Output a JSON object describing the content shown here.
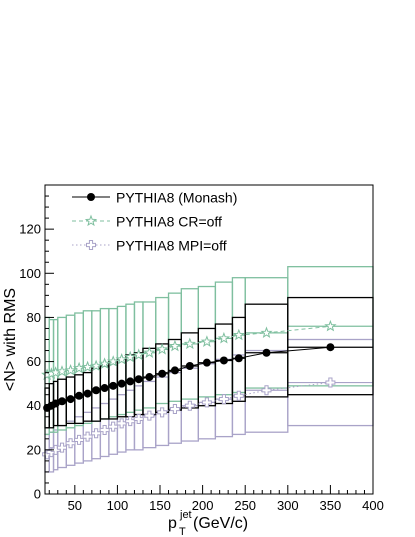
{
  "chart_data": {
    "type": "scatter",
    "title": "",
    "xlabel": "p",
    "xlabel_superscript": "jet",
    "xlabel_subscript": "T",
    "xlabel_unit": "(GeV/c)",
    "ylabel": "<N> with RMS",
    "xlim": [
      15,
      400
    ],
    "ylim": [
      0,
      140
    ],
    "xticks": [
      50,
      100,
      150,
      200,
      250,
      300,
      350,
      400
    ],
    "yticks": [
      0,
      20,
      40,
      60,
      80,
      100,
      120
    ],
    "legend_position": "top-left",
    "grid": false,
    "colors": {
      "monash": "#000000",
      "cr": "#7fbf9f",
      "mpi": "#a9a3c8"
    },
    "series": [
      {
        "name": "PYTHIA8 (Monash)",
        "marker": "filled-circle",
        "line": "solid",
        "x": [
          17.5,
          22.5,
          27.5,
          35,
          45,
          55,
          65,
          75,
          85,
          95,
          105,
          115,
          125,
          137.5,
          152.5,
          167.5,
          185,
          205,
          225,
          242.5,
          275,
          350
        ],
        "y": [
          39,
          40,
          41,
          42,
          43,
          44.5,
          45.5,
          47,
          48,
          49,
          50,
          51,
          52,
          53,
          54.5,
          56,
          58,
          59.5,
          60.5,
          61.5,
          64,
          66.5
        ],
        "x_edges": [
          15,
          20,
          25,
          30,
          40,
          50,
          60,
          70,
          80,
          90,
          100,
          110,
          120,
          130,
          145,
          160,
          175,
          195,
          215,
          235,
          250,
          300,
          400
        ],
        "rms_low": [
          30,
          30,
          31,
          31,
          32,
          32,
          33,
          33,
          34,
          34,
          35,
          35,
          36,
          36,
          37,
          38,
          39,
          40,
          41,
          42,
          44,
          45
        ],
        "rms_high": [
          48,
          50,
          51,
          52,
          53,
          54,
          55,
          57,
          58,
          60,
          61,
          63,
          64,
          66,
          68,
          70,
          73,
          75,
          77,
          80,
          86,
          89
        ]
      },
      {
        "name": "PYTHIA8 CR=off",
        "marker": "open-star",
        "line": "dashed",
        "x": [
          17.5,
          22.5,
          27.5,
          35,
          45,
          55,
          65,
          75,
          85,
          95,
          105,
          115,
          125,
          137.5,
          152.5,
          167.5,
          185,
          205,
          225,
          242.5,
          275,
          350
        ],
        "y": [
          54,
          54.5,
          55,
          55.5,
          56,
          57,
          57.5,
          58,
          59,
          60,
          61,
          62,
          63,
          64,
          65.5,
          67,
          68,
          69,
          70.5,
          72,
          73,
          76
        ],
        "rms_low": [
          27,
          28,
          28,
          29,
          30,
          31,
          32,
          33,
          34,
          35,
          36,
          37,
          38,
          39,
          41,
          42,
          43,
          44,
          45,
          46,
          48,
          49
        ],
        "rms_high": [
          80,
          79,
          79,
          80,
          81,
          82,
          83,
          83,
          84,
          84,
          85,
          86,
          87,
          87,
          89,
          91,
          93,
          94,
          96,
          98,
          98,
          103
        ]
      },
      {
        "name": "PYTHIA8 MPI=off",
        "marker": "open-cross",
        "line": "dotted",
        "x": [
          17.5,
          22.5,
          27.5,
          35,
          45,
          55,
          65,
          75,
          85,
          95,
          105,
          115,
          125,
          137.5,
          152.5,
          167.5,
          185,
          205,
          225,
          242.5,
          275,
          350
        ],
        "y": [
          18,
          19,
          20,
          21,
          23,
          24.5,
          26,
          27.5,
          29,
          30.5,
          32,
          33,
          34,
          35.5,
          37,
          38.5,
          40,
          41.5,
          43,
          44.5,
          47,
          50.5
        ],
        "rms_low": [
          10,
          10,
          11,
          12,
          13,
          14,
          15,
          16,
          17,
          18,
          19,
          20,
          20,
          21,
          22,
          23,
          24,
          25,
          26,
          27,
          28,
          31
        ],
        "rms_high": [
          27,
          28,
          29,
          31,
          33,
          35,
          37,
          39,
          41,
          43,
          45,
          47,
          49,
          51,
          53,
          55,
          57,
          59,
          61,
          63,
          65,
          70
        ]
      }
    ]
  }
}
